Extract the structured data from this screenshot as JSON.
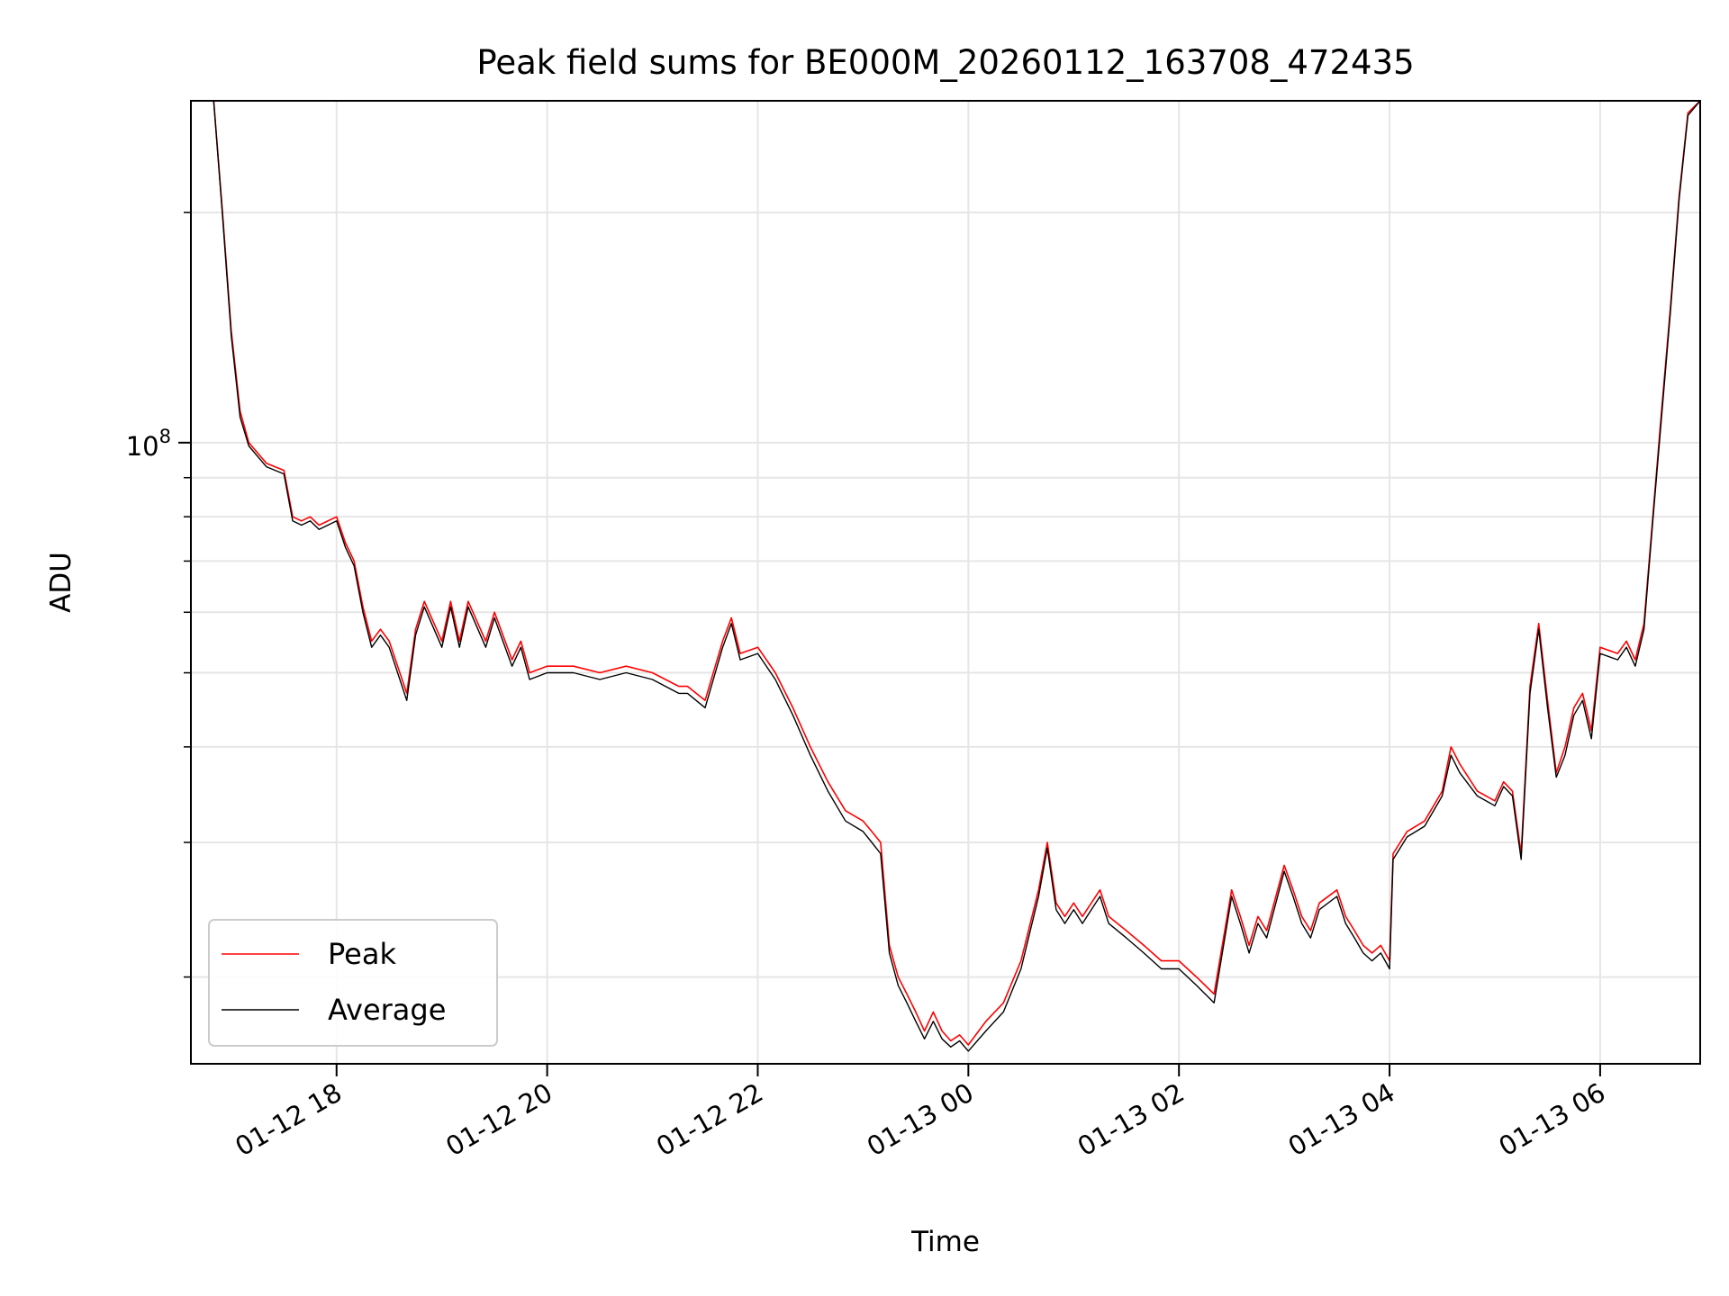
{
  "chart_data": {
    "type": "line",
    "title": "Peak field sums for BE000M_20260112_163708_472435",
    "xlabel": "Time",
    "ylabel": "ADU",
    "yscale": "log",
    "xlim": [
      "01-12 16:37",
      "01-13 06:57"
    ],
    "ylim": [
      15400000,
      280000000
    ],
    "x_ticks": [
      "01-12 18",
      "01-12 20",
      "01-12 22",
      "01-13 00",
      "01-13 02",
      "01-13 04",
      "01-13 06"
    ],
    "y_ticks": [
      {
        "label": "10",
        "exp": "8",
        "value": 100000000
      }
    ],
    "grid": true,
    "legend": {
      "position": "lower-left",
      "entries": [
        "Peak",
        "Average"
      ]
    },
    "colors": {
      "Peak": "#ff0000",
      "Average": "#000000"
    },
    "x": [
      "01-12 16:37",
      "01-12 16:50",
      "01-12 16:55",
      "01-12 17:00",
      "01-12 17:05",
      "01-12 17:10",
      "01-12 17:20",
      "01-12 17:30",
      "01-12 17:35",
      "01-12 17:40",
      "01-12 17:45",
      "01-12 17:50",
      "01-12 18:00",
      "01-12 18:05",
      "01-12 18:10",
      "01-12 18:15",
      "01-12 18:20",
      "01-12 18:25",
      "01-12 18:30",
      "01-12 18:40",
      "01-12 18:45",
      "01-12 18:50",
      "01-12 19:00",
      "01-12 19:05",
      "01-12 19:10",
      "01-12 19:15",
      "01-12 19:25",
      "01-12 19:30",
      "01-12 19:40",
      "01-12 19:45",
      "01-12 19:50",
      "01-12 20:00",
      "01-12 20:15",
      "01-12 20:30",
      "01-12 20:45",
      "01-12 21:00",
      "01-12 21:15",
      "01-12 21:20",
      "01-12 21:30",
      "01-12 21:40",
      "01-12 21:45",
      "01-12 21:50",
      "01-12 22:00",
      "01-12 22:10",
      "01-12 22:20",
      "01-12 22:30",
      "01-12 22:40",
      "01-12 22:50",
      "01-12 23:00",
      "01-12 23:05",
      "01-12 23:10",
      "01-12 23:15",
      "01-12 23:20",
      "01-12 23:25",
      "01-12 23:30",
      "01-12 23:35",
      "01-12 23:40",
      "01-12 23:45",
      "01-12 23:50",
      "01-12 23:55",
      "01-13 00:00",
      "01-13 00:10",
      "01-13 00:20",
      "01-13 00:30",
      "01-13 00:40",
      "01-13 00:45",
      "01-13 00:50",
      "01-13 00:55",
      "01-13 01:00",
      "01-13 01:05",
      "01-13 01:15",
      "01-13 01:20",
      "01-13 01:30",
      "01-13 01:40",
      "01-13 01:50",
      "01-13 02:00",
      "01-13 02:10",
      "01-13 02:20",
      "01-13 02:30",
      "01-13 02:35",
      "01-13 02:40",
      "01-13 02:45",
      "01-13 02:50",
      "01-13 03:00",
      "01-13 03:05",
      "01-13 03:10",
      "01-13 03:15",
      "01-13 03:20",
      "01-13 03:30",
      "01-13 03:35",
      "01-13 03:40",
      "01-13 03:45",
      "01-13 03:50",
      "01-13 03:55",
      "01-13 04:00",
      "01-13 04:02",
      "01-13 04:10",
      "01-13 04:20",
      "01-13 04:30",
      "01-13 04:35",
      "01-13 04:40",
      "01-13 04:50",
      "01-13 05:00",
      "01-13 05:05",
      "01-13 05:10",
      "01-13 05:15",
      "01-13 05:20",
      "01-13 05:25",
      "01-13 05:30",
      "01-13 05:35",
      "01-13 05:40",
      "01-13 05:45",
      "01-13 05:50",
      "01-13 05:55",
      "01-13 06:00",
      "01-13 06:10",
      "01-13 06:15",
      "01-13 06:20",
      "01-13 06:25",
      "01-13 06:30",
      "01-13 06:35",
      "01-13 06:40",
      "01-13 06:45",
      "01-13 06:50",
      "01-13 06:57"
    ],
    "series": [
      {
        "name": "Peak",
        "values": [
          280000000,
          280000000,
          200000000,
          140000000,
          110000000,
          100000000,
          94000000,
          92000000,
          80000000,
          79000000,
          80000000,
          78000000,
          80000000,
          74000000,
          70000000,
          61000000,
          55000000,
          57000000,
          55000000,
          47000000,
          57000000,
          62000000,
          55000000,
          62000000,
          55000000,
          62000000,
          55000000,
          60000000,
          52000000,
          55000000,
          50000000,
          51000000,
          51000000,
          50000000,
          51000000,
          50000000,
          48000000,
          48000000,
          46000000,
          55000000,
          59000000,
          53000000,
          54000000,
          50000000,
          45000000,
          40000000,
          36000000,
          33000000,
          32000000,
          31000000,
          30000000,
          22000000,
          20000000,
          19000000,
          18000000,
          17000000,
          18000000,
          17000000,
          16500000,
          16800000,
          16300000,
          17500000,
          18500000,
          21000000,
          26000000,
          30000000,
          25000000,
          24000000,
          25000000,
          24000000,
          26000000,
          24000000,
          23000000,
          22000000,
          21000000,
          21000000,
          20000000,
          19000000,
          26000000,
          24000000,
          22000000,
          24000000,
          23000000,
          28000000,
          26000000,
          24000000,
          23000000,
          25000000,
          26000000,
          24000000,
          23000000,
          22000000,
          21500000,
          22000000,
          21000000,
          29000000,
          31000000,
          32000000,
          35000000,
          40000000,
          38000000,
          35000000,
          34000000,
          36000000,
          35000000,
          29000000,
          48000000,
          58000000,
          46000000,
          37000000,
          40000000,
          45000000,
          47000000,
          42000000,
          54000000,
          53000000,
          55000000,
          52000000,
          58000000,
          80000000,
          110000000,
          150000000,
          210000000,
          270000000,
          280000000
        ]
      },
      {
        "name": "Average",
        "values": [
          280000000,
          280000000,
          198000000,
          138000000,
          108000000,
          99000000,
          93000000,
          91000000,
          79000000,
          78000000,
          79000000,
          77000000,
          79000000,
          73000000,
          69000000,
          60000000,
          54000000,
          56000000,
          54000000,
          46000000,
          56000000,
          61000000,
          54000000,
          61000000,
          54000000,
          61000000,
          54000000,
          59000000,
          51000000,
          54000000,
          49000000,
          50000000,
          50000000,
          49000000,
          50000000,
          49000000,
          47000000,
          47000000,
          45000000,
          54000000,
          58000000,
          52000000,
          53000000,
          49000000,
          44000000,
          39000000,
          35000000,
          32000000,
          31000000,
          30000000,
          29000000,
          21500000,
          19500000,
          18500000,
          17500000,
          16600000,
          17500000,
          16600000,
          16200000,
          16500000,
          16000000,
          17000000,
          18000000,
          20500000,
          25500000,
          29500000,
          24500000,
          23500000,
          24500000,
          23500000,
          25500000,
          23500000,
          22500000,
          21500000,
          20500000,
          20500000,
          19500000,
          18500000,
          25500000,
          23500000,
          21500000,
          23500000,
          22500000,
          27500000,
          25500000,
          23500000,
          22500000,
          24500000,
          25500000,
          23500000,
          22500000,
          21500000,
          21000000,
          21500000,
          20500000,
          28500000,
          30500000,
          31500000,
          34500000,
          39000000,
          37000000,
          34500000,
          33500000,
          35500000,
          34500000,
          28500000,
          47000000,
          57000000,
          45000000,
          36500000,
          39000000,
          44000000,
          46000000,
          41000000,
          53000000,
          52000000,
          54000000,
          51000000,
          57000000,
          79000000,
          108000000,
          148000000,
          208000000,
          268000000,
          280000000
        ]
      }
    ]
  }
}
